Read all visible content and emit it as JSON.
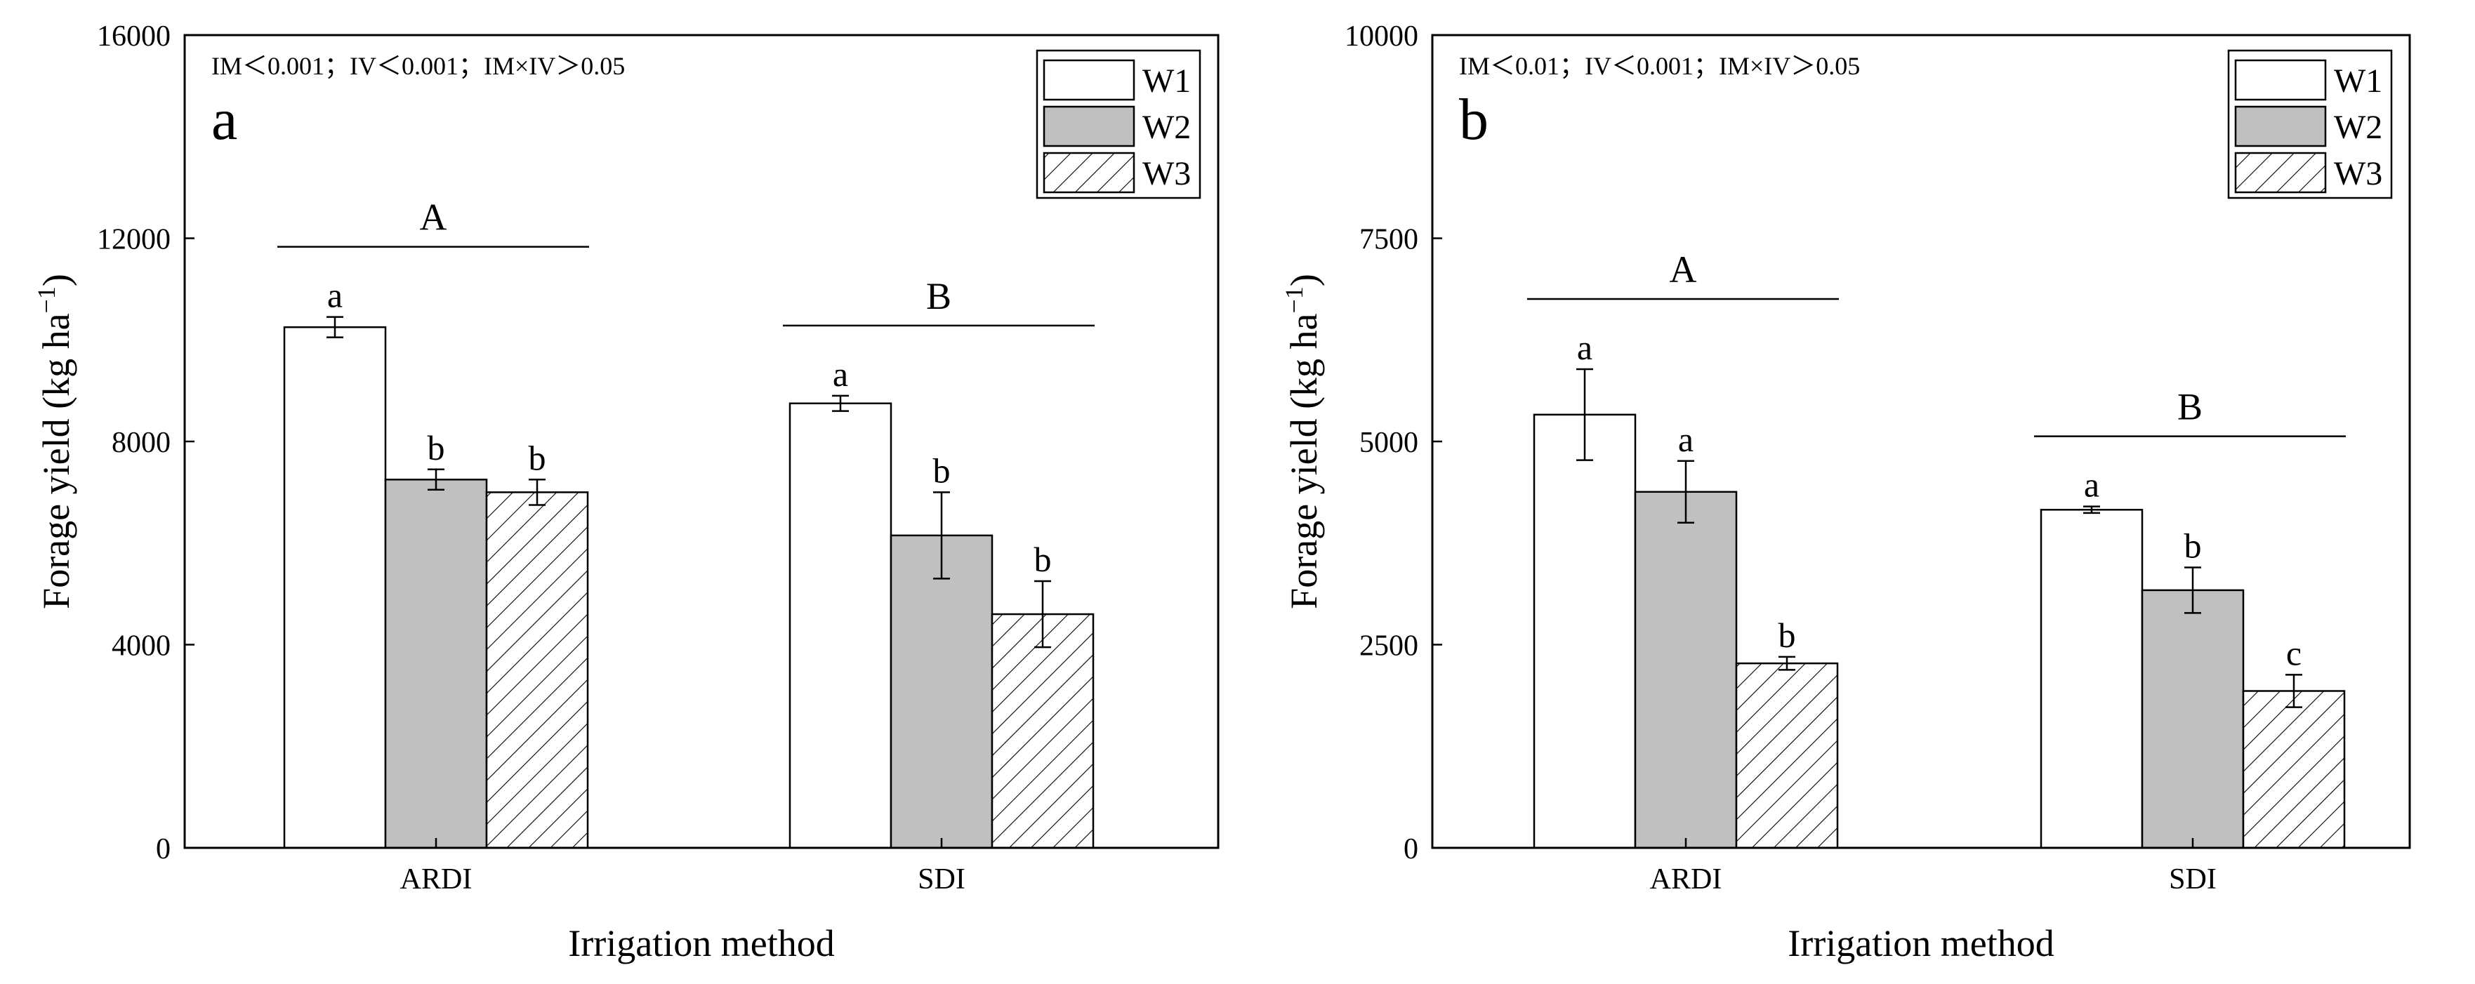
{
  "legend_labels": [
    "W1",
    "W2",
    "W3"
  ],
  "colors": {
    "W1": "#ffffff",
    "W2": "#c0c0c0",
    "W3": "hatch",
    "axis": "#000000"
  },
  "chart_data": [
    {
      "type": "bar",
      "panel_letter": "a",
      "annotation": "IM＜0.001；IV＜0.001；IM×IV＞0.05",
      "xlabel": "Irrigation method",
      "ylabel": "Forage yield (kg ha",
      "ylabel_sup": "−1",
      "ylabel_end": ")",
      "ylim": [
        0,
        16000
      ],
      "yticks": [
        "0",
        "4000",
        "8000",
        "12000",
        "16000"
      ],
      "categories": [
        "ARDI",
        "SDI"
      ],
      "legend_position": "top-right",
      "series": [
        {
          "name": "W1",
          "values": [
            10250,
            8750
          ],
          "errors": [
            200,
            150
          ],
          "letters": [
            "a",
            "a"
          ]
        },
        {
          "name": "W2",
          "values": [
            7250,
            6150
          ],
          "errors": [
            200,
            850
          ],
          "letters": [
            "b",
            "b"
          ]
        },
        {
          "name": "W3",
          "values": [
            7000,
            4600
          ],
          "errors": [
            250,
            650
          ],
          "letters": [
            "b",
            "b"
          ]
        }
      ],
      "group_letters": [
        "A",
        "B"
      ]
    },
    {
      "type": "bar",
      "panel_letter": "b",
      "annotation": "IM＜0.01；IV＜0.001；IM×IV＞0.05",
      "xlabel": "Irrigation method",
      "ylabel": "Forage yield (kg ha",
      "ylabel_sup": "−1",
      "ylabel_end": ")",
      "ylim": [
        0,
        10000
      ],
      "yticks": [
        "0",
        "2500",
        "5000",
        "7500",
        "10000"
      ],
      "categories": [
        "ARDI",
        "SDI"
      ],
      "legend_position": "top-right",
      "series": [
        {
          "name": "W1",
          "values": [
            5330,
            4160
          ],
          "errors": [
            560,
            40
          ],
          "letters": [
            "a",
            "a"
          ]
        },
        {
          "name": "W2",
          "values": [
            4380,
            3170
          ],
          "errors": [
            380,
            280
          ],
          "letters": [
            "a",
            "b"
          ]
        },
        {
          "name": "W3",
          "values": [
            2270,
            1930
          ],
          "errors": [
            80,
            200
          ],
          "letters": [
            "b",
            "c"
          ]
        }
      ],
      "group_letters": [
        "A",
        "B"
      ]
    }
  ]
}
